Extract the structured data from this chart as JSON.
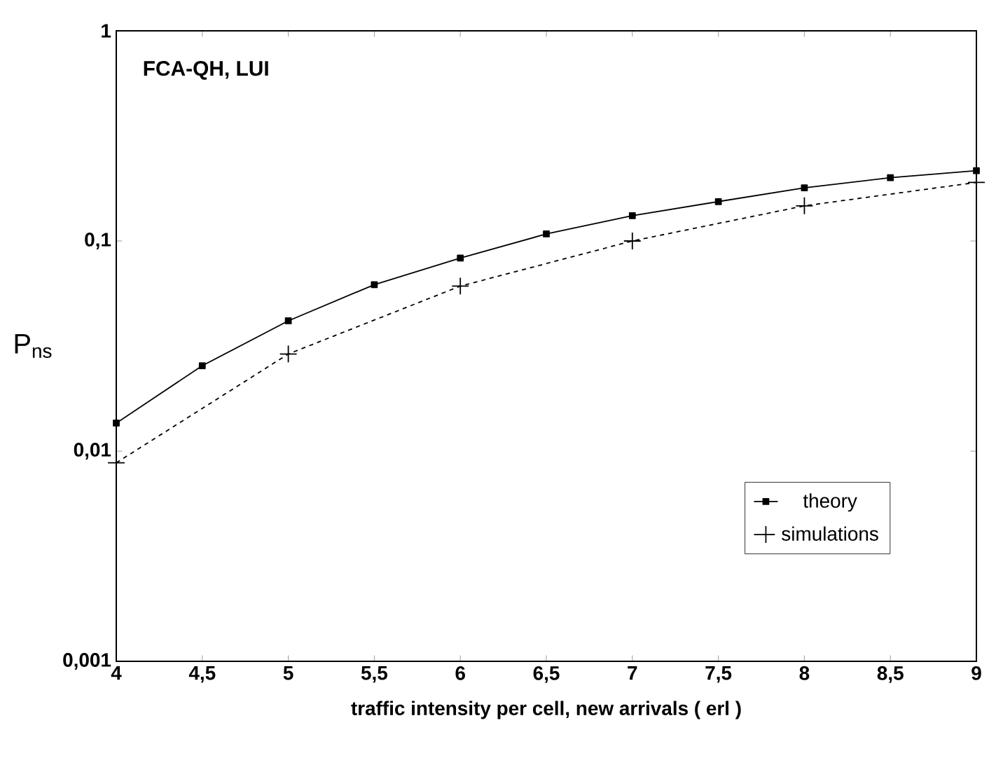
{
  "chart_data": {
    "type": "line",
    "xlabel": "traffic intensity per cell, new arrivals ( erl )",
    "ylabel": "P$_{ns}$",
    "annotations": [
      "FCA-QH, LUI"
    ],
    "log": "y",
    "xlim": [
      4,
      9
    ],
    "ylim": [
      0.001,
      1
    ],
    "xticks": [
      4,
      {
        "value": 4.5,
        "label": "4,5"
      },
      5,
      {
        "value": 5.5,
        "label": "5,5"
      },
      6,
      {
        "value": 6.5,
        "label": "6,5"
      },
      7,
      {
        "value": 7.5,
        "label": "7,5"
      },
      8,
      {
        "value": 8.5,
        "label": "8,5"
      },
      9
    ],
    "yticks": [
      {
        "value": 0.001,
        "label": "0,001"
      },
      {
        "value": 0.01,
        "label": "0,01"
      },
      {
        "value": 0.1,
        "label": "0,1"
      },
      1
    ],
    "legend": "bottom right",
    "grid": false,
    "series": [
      {
        "name": "theory",
        "color": "#000000",
        "marker": "square",
        "line_style": "solid",
        "x": [
          4,
          4.5,
          5,
          5.5,
          6,
          6.5,
          7,
          7.5,
          8,
          8.5,
          9
        ],
        "values": [
          0.0136,
          0.0255,
          0.0417,
          0.062,
          0.083,
          0.108,
          0.132,
          0.154,
          0.179,
          0.2,
          0.216
        ]
      },
      {
        "name": "simulations",
        "color": "#000000",
        "marker": "cross",
        "line_style": "dashed",
        "x": [
          4,
          5,
          6,
          7,
          8,
          9
        ],
        "values": [
          0.0088,
          0.029,
          0.061,
          0.1,
          0.147,
          0.19
        ]
      }
    ]
  }
}
